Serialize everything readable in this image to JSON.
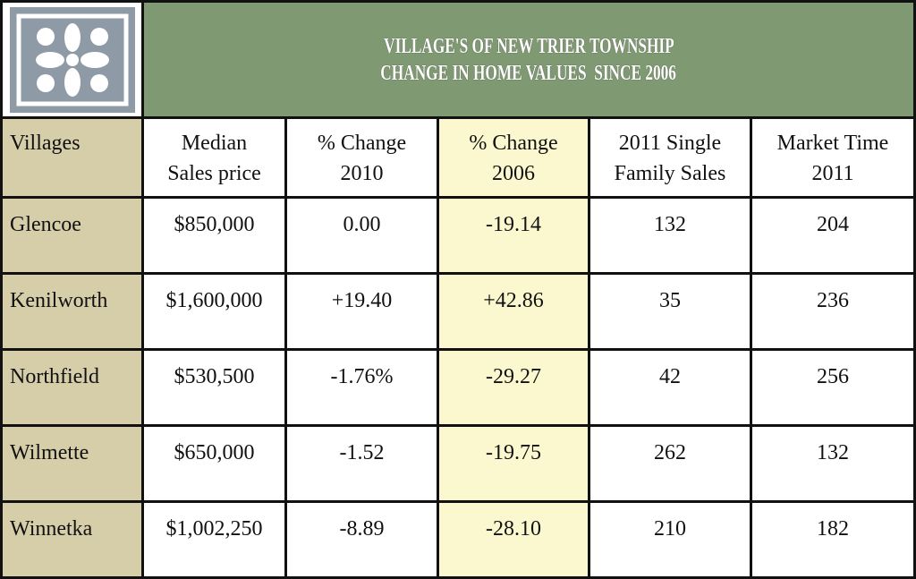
{
  "header": {
    "title_lines": [
      "VILLAGE'S OF NEW TRIER TOWNSHIP",
      "CHANGE IN HOME VALUES  SINCE 2006"
    ]
  },
  "table": {
    "columns": [
      [
        "Villages"
      ],
      [
        "Median",
        "Sales price"
      ],
      [
        "% Change",
        "2010"
      ],
      [
        "% Change",
        "2006"
      ],
      [
        "2011 Single",
        "Family Sales"
      ],
      [
        "Market Time",
        "2011"
      ]
    ],
    "rows": [
      [
        "Glencoe",
        "$850,000",
        "0.00",
        "-19.14",
        "132",
        "204"
      ],
      [
        "Kenilworth",
        "$1,600,000",
        "+19.40",
        "+42.86",
        "35",
        "236"
      ],
      [
        "Northfield",
        "$530,500",
        "-1.76%",
        "-29.27",
        "42",
        "256"
      ],
      [
        "Wilmette",
        "$650,000",
        "-1.52",
        "-19.75",
        "262",
        "132"
      ],
      [
        "Winnetka",
        "$1,002,250",
        "-8.89",
        "-28.10",
        "210",
        "182"
      ]
    ]
  }
}
